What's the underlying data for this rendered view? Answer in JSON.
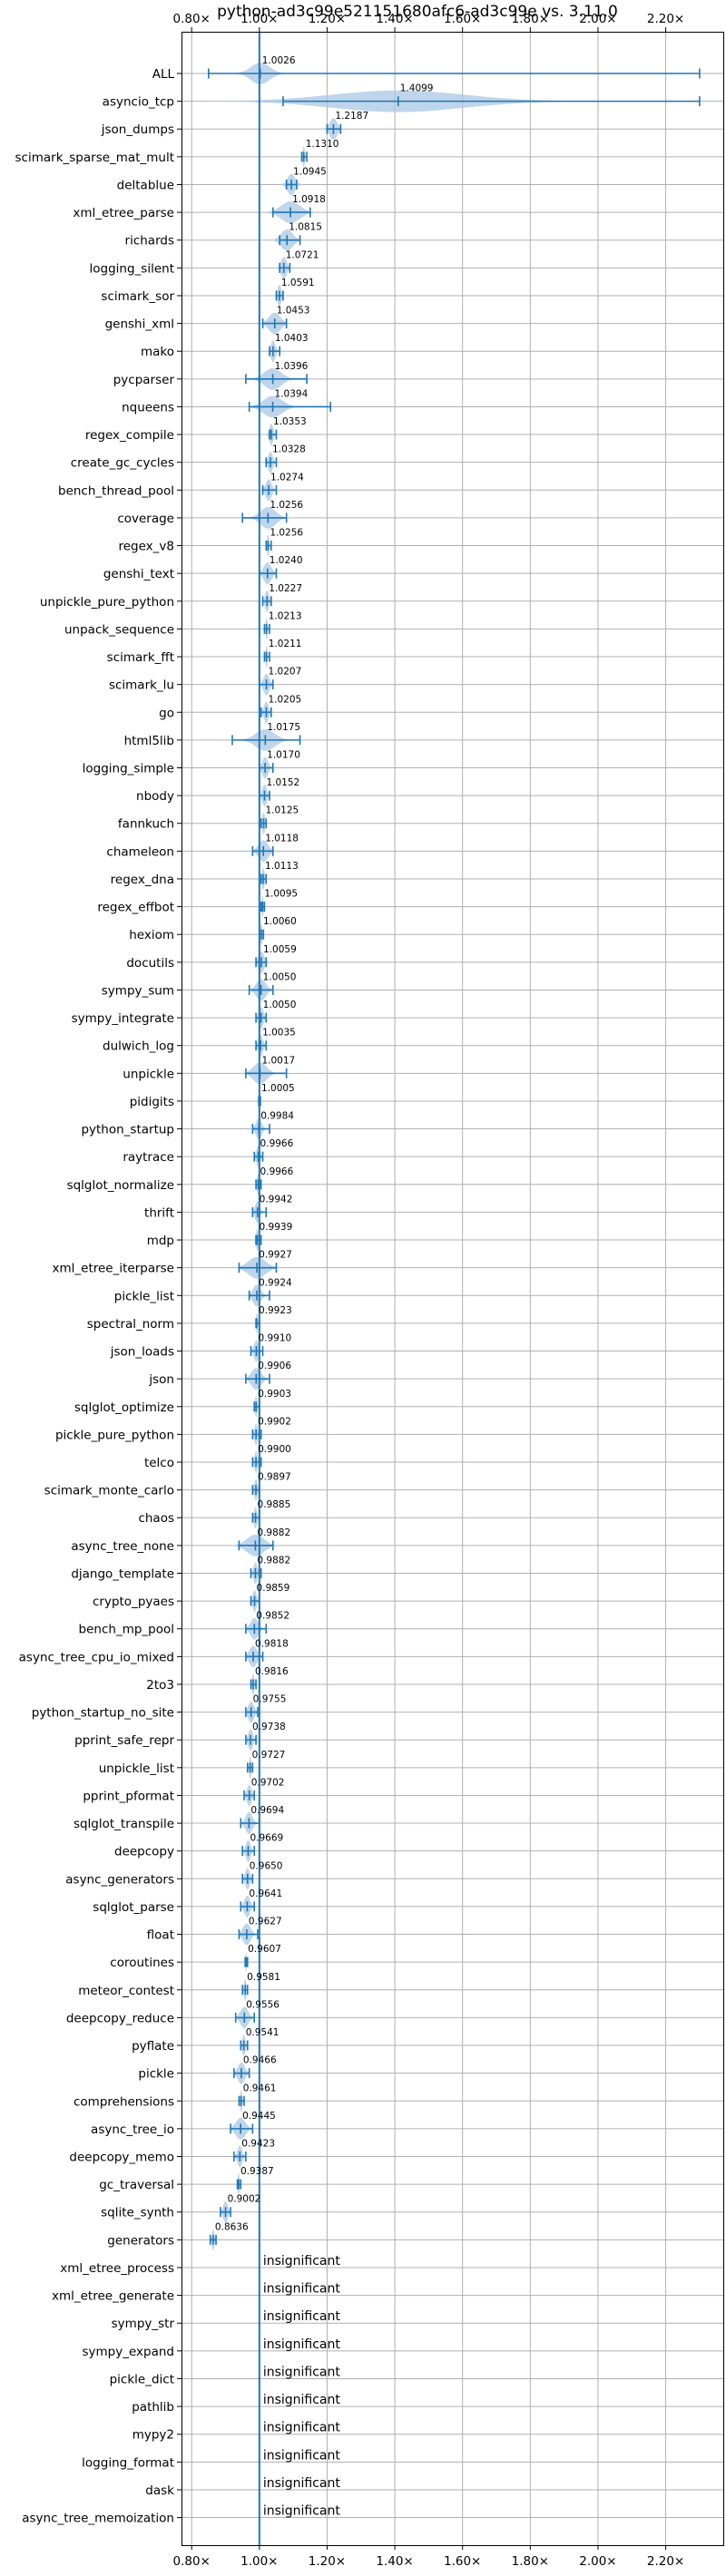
{
  "chart_data": {
    "type": "violin",
    "title": "python-ad3c99e521151680afc6-ad3c99e vs. 3.11.0",
    "xlim": [
      0.77,
      2.37
    ],
    "xticks": [
      "0.80×",
      "1.00×",
      "1.20×",
      "1.40×",
      "1.60×",
      "1.80×",
      "2.00×",
      "2.20×"
    ],
    "xtick_values": [
      0.8,
      1.0,
      1.2,
      1.4,
      1.6,
      1.8,
      2.0,
      2.2
    ],
    "reference_line": 1.0,
    "grid": true,
    "color": "#1f77b4",
    "fill_color": "#a9c7e4",
    "insignificant_label": "insignificant",
    "benchmarks": [
      {
        "name": "ALL",
        "label": "1.0026",
        "value": 1.0026,
        "min": 0.85,
        "max": 2.3,
        "spread": 0.05
      },
      {
        "name": "asyncio_tcp",
        "label": "1.4099",
        "value": 1.4099,
        "min": 1.07,
        "max": 2.3,
        "spread": 0.35
      },
      {
        "name": "json_dumps",
        "label": "1.2187",
        "value": 1.2187,
        "min": 1.2,
        "max": 1.24,
        "spread": 0.02
      },
      {
        "name": "scimark_sparse_mat_mult",
        "label": "1.1310",
        "value": 1.131,
        "min": 1.125,
        "max": 1.14,
        "spread": 0.005
      },
      {
        "name": "deltablue",
        "label": "1.0945",
        "value": 1.0945,
        "min": 1.08,
        "max": 1.11,
        "spread": 0.02
      },
      {
        "name": "xml_etree_parse",
        "label": "1.0918",
        "value": 1.0918,
        "min": 1.04,
        "max": 1.15,
        "spread": 0.05
      },
      {
        "name": "richards",
        "label": "1.0815",
        "value": 1.0815,
        "min": 1.06,
        "max": 1.12,
        "spread": 0.03
      },
      {
        "name": "logging_silent",
        "label": "1.0721",
        "value": 1.0721,
        "min": 1.06,
        "max": 1.09,
        "spread": 0.015
      },
      {
        "name": "scimark_sor",
        "label": "1.0591",
        "value": 1.0591,
        "min": 1.05,
        "max": 1.07,
        "spread": 0.01
      },
      {
        "name": "genshi_xml",
        "label": "1.0453",
        "value": 1.0453,
        "min": 1.01,
        "max": 1.08,
        "spread": 0.03
      },
      {
        "name": "mako",
        "label": "1.0403",
        "value": 1.0403,
        "min": 1.03,
        "max": 1.06,
        "spread": 0.012
      },
      {
        "name": "pycparser",
        "label": "1.0396",
        "value": 1.0396,
        "min": 0.96,
        "max": 1.14,
        "spread": 0.045
      },
      {
        "name": "nqueens",
        "label": "1.0394",
        "value": 1.0394,
        "min": 0.97,
        "max": 1.21,
        "spread": 0.05
      },
      {
        "name": "regex_compile",
        "label": "1.0353",
        "value": 1.0353,
        "min": 1.03,
        "max": 1.05,
        "spread": 0.01
      },
      {
        "name": "create_gc_cycles",
        "label": "1.0328",
        "value": 1.0328,
        "min": 1.02,
        "max": 1.05,
        "spread": 0.012
      },
      {
        "name": "bench_thread_pool",
        "label": "1.0274",
        "value": 1.0274,
        "min": 1.01,
        "max": 1.05,
        "spread": 0.015
      },
      {
        "name": "coverage",
        "label": "1.0256",
        "value": 1.0256,
        "min": 0.95,
        "max": 1.08,
        "spread": 0.04
      },
      {
        "name": "regex_v8",
        "label": "1.0256",
        "value": 1.0256,
        "min": 1.02,
        "max": 1.035,
        "spread": 0.006
      },
      {
        "name": "genshi_text",
        "label": "1.0240",
        "value": 1.024,
        "min": 1.0,
        "max": 1.05,
        "spread": 0.02
      },
      {
        "name": "unpickle_pure_python",
        "label": "1.0227",
        "value": 1.0227,
        "min": 1.01,
        "max": 1.035,
        "spread": 0.01
      },
      {
        "name": "unpack_sequence",
        "label": "1.0213",
        "value": 1.0213,
        "min": 1.015,
        "max": 1.03,
        "spread": 0.005
      },
      {
        "name": "scimark_fft",
        "label": "1.0211",
        "value": 1.0211,
        "min": 1.015,
        "max": 1.03,
        "spread": 0.005
      },
      {
        "name": "scimark_lu",
        "label": "1.0207",
        "value": 1.0207,
        "min": 1.0,
        "max": 1.04,
        "spread": 0.015
      },
      {
        "name": "go",
        "label": "1.0205",
        "value": 1.0205,
        "min": 1.005,
        "max": 1.035,
        "spread": 0.012
      },
      {
        "name": "html5lib",
        "label": "1.0175",
        "value": 1.0175,
        "min": 0.92,
        "max": 1.12,
        "spread": 0.05
      },
      {
        "name": "logging_simple",
        "label": "1.0170",
        "value": 1.017,
        "min": 1.0,
        "max": 1.04,
        "spread": 0.015
      },
      {
        "name": "nbody",
        "label": "1.0152",
        "value": 1.0152,
        "min": 1.0,
        "max": 1.03,
        "spread": 0.012
      },
      {
        "name": "fannkuch",
        "label": "1.0125",
        "value": 1.0125,
        "min": 1.005,
        "max": 1.02,
        "spread": 0.008
      },
      {
        "name": "chameleon",
        "label": "1.0118",
        "value": 1.0118,
        "min": 0.98,
        "max": 1.04,
        "spread": 0.025
      },
      {
        "name": "regex_dna",
        "label": "1.0113",
        "value": 1.0113,
        "min": 1.005,
        "max": 1.02,
        "spread": 0.008
      },
      {
        "name": "regex_effbot",
        "label": "1.0095",
        "value": 1.0095,
        "min": 1.005,
        "max": 1.015,
        "spread": 0.005
      },
      {
        "name": "hexiom",
        "label": "1.0060",
        "value": 1.006,
        "min": 1.0,
        "max": 1.012,
        "spread": 0.006
      },
      {
        "name": "docutils",
        "label": "1.0059",
        "value": 1.0059,
        "min": 0.99,
        "max": 1.02,
        "spread": 0.015
      },
      {
        "name": "sympy_sum",
        "label": "1.0050",
        "value": 1.005,
        "min": 0.97,
        "max": 1.04,
        "spread": 0.025
      },
      {
        "name": "sympy_integrate",
        "label": "1.0050",
        "value": 1.005,
        "min": 0.99,
        "max": 1.02,
        "spread": 0.012
      },
      {
        "name": "dulwich_log",
        "label": "1.0035",
        "value": 1.0035,
        "min": 0.99,
        "max": 1.02,
        "spread": 0.012
      },
      {
        "name": "unpickle",
        "label": "1.0017",
        "value": 1.0017,
        "min": 0.96,
        "max": 1.08,
        "spread": 0.035
      },
      {
        "name": "pidigits",
        "label": "1.0005",
        "value": 1.0005,
        "min": 0.998,
        "max": 1.003,
        "spread": 0.003
      },
      {
        "name": "python_startup",
        "label": "0.9984",
        "value": 0.9984,
        "min": 0.98,
        "max": 1.03,
        "spread": 0.015
      },
      {
        "name": "raytrace",
        "label": "0.9966",
        "value": 0.9966,
        "min": 0.985,
        "max": 1.01,
        "spread": 0.01
      },
      {
        "name": "sqlglot_normalize",
        "label": "0.9966",
        "value": 0.9966,
        "min": 0.99,
        "max": 1.005,
        "spread": 0.007
      },
      {
        "name": "thrift",
        "label": "0.9942",
        "value": 0.9942,
        "min": 0.98,
        "max": 1.02,
        "spread": 0.012
      },
      {
        "name": "mdp",
        "label": "0.9939",
        "value": 0.9939,
        "min": 0.99,
        "max": 1.005,
        "spread": 0.007
      },
      {
        "name": "xml_etree_iterparse",
        "label": "0.9927",
        "value": 0.9927,
        "min": 0.94,
        "max": 1.05,
        "spread": 0.045
      },
      {
        "name": "pickle_list",
        "label": "0.9924",
        "value": 0.9924,
        "min": 0.97,
        "max": 1.03,
        "spread": 0.02
      },
      {
        "name": "spectral_norm",
        "label": "0.9923",
        "value": 0.9923,
        "min": 0.99,
        "max": 1.0,
        "spread": 0.004
      },
      {
        "name": "json_loads",
        "label": "0.9910",
        "value": 0.991,
        "min": 0.975,
        "max": 1.01,
        "spread": 0.012
      },
      {
        "name": "json",
        "label": "0.9906",
        "value": 0.9906,
        "min": 0.96,
        "max": 1.03,
        "spread": 0.025
      },
      {
        "name": "sqlglot_optimize",
        "label": "0.9903",
        "value": 0.9903,
        "min": 0.985,
        "max": 1.0,
        "spread": 0.006
      },
      {
        "name": "pickle_pure_python",
        "label": "0.9902",
        "value": 0.9902,
        "min": 0.98,
        "max": 1.005,
        "spread": 0.008
      },
      {
        "name": "telco",
        "label": "0.9900",
        "value": 0.99,
        "min": 0.98,
        "max": 1.005,
        "spread": 0.008
      },
      {
        "name": "scimark_monte_carlo",
        "label": "0.9897",
        "value": 0.9897,
        "min": 0.98,
        "max": 1.0,
        "spread": 0.008
      },
      {
        "name": "chaos",
        "label": "0.9885",
        "value": 0.9885,
        "min": 0.98,
        "max": 1.0,
        "spread": 0.008
      },
      {
        "name": "async_tree_none",
        "label": "0.9882",
        "value": 0.9882,
        "min": 0.94,
        "max": 1.04,
        "spread": 0.045
      },
      {
        "name": "django_template",
        "label": "0.9882",
        "value": 0.9882,
        "min": 0.975,
        "max": 1.005,
        "spread": 0.01
      },
      {
        "name": "crypto_pyaes",
        "label": "0.9859",
        "value": 0.9859,
        "min": 0.975,
        "max": 1.0,
        "spread": 0.01
      },
      {
        "name": "bench_mp_pool",
        "label": "0.9852",
        "value": 0.9852,
        "min": 0.96,
        "max": 1.02,
        "spread": 0.02
      },
      {
        "name": "async_tree_cpu_io_mixed",
        "label": "0.9818",
        "value": 0.9818,
        "min": 0.96,
        "max": 1.01,
        "spread": 0.02
      },
      {
        "name": "2to3",
        "label": "0.9816",
        "value": 0.9816,
        "min": 0.975,
        "max": 0.99,
        "spread": 0.006
      },
      {
        "name": "python_startup_no_site",
        "label": "0.9755",
        "value": 0.9755,
        "min": 0.96,
        "max": 0.995,
        "spread": 0.015
      },
      {
        "name": "pprint_safe_repr",
        "label": "0.9738",
        "value": 0.9738,
        "min": 0.96,
        "max": 0.99,
        "spread": 0.012
      },
      {
        "name": "unpickle_list",
        "label": "0.9727",
        "value": 0.9727,
        "min": 0.965,
        "max": 0.98,
        "spread": 0.006
      },
      {
        "name": "pprint_pformat",
        "label": "0.9702",
        "value": 0.9702,
        "min": 0.955,
        "max": 0.985,
        "spread": 0.012
      },
      {
        "name": "sqlglot_transpile",
        "label": "0.9694",
        "value": 0.9694,
        "min": 0.945,
        "max": 1.0,
        "spread": 0.018
      },
      {
        "name": "deepcopy",
        "label": "0.9669",
        "value": 0.9669,
        "min": 0.95,
        "max": 0.985,
        "spread": 0.012
      },
      {
        "name": "async_generators",
        "label": "0.9650",
        "value": 0.965,
        "min": 0.95,
        "max": 0.98,
        "spread": 0.012
      },
      {
        "name": "sqlglot_parse",
        "label": "0.9641",
        "value": 0.9641,
        "min": 0.945,
        "max": 0.985,
        "spread": 0.015
      },
      {
        "name": "float",
        "label": "0.9627",
        "value": 0.9627,
        "min": 0.94,
        "max": 0.995,
        "spread": 0.02
      },
      {
        "name": "coroutines",
        "label": "0.9607",
        "value": 0.9607,
        "min": 0.958,
        "max": 0.965,
        "spread": 0.003
      },
      {
        "name": "meteor_contest",
        "label": "0.9581",
        "value": 0.9581,
        "min": 0.95,
        "max": 0.965,
        "spread": 0.006
      },
      {
        "name": "deepcopy_reduce",
        "label": "0.9556",
        "value": 0.9556,
        "min": 0.93,
        "max": 0.985,
        "spread": 0.02
      },
      {
        "name": "pyflate",
        "label": "0.9541",
        "value": 0.9541,
        "min": 0.945,
        "max": 0.965,
        "spread": 0.008
      },
      {
        "name": "pickle",
        "label": "0.9466",
        "value": 0.9466,
        "min": 0.925,
        "max": 0.97,
        "spread": 0.018
      },
      {
        "name": "comprehensions",
        "label": "0.9461",
        "value": 0.9461,
        "min": 0.94,
        "max": 0.955,
        "spread": 0.006
      },
      {
        "name": "async_tree_io",
        "label": "0.9445",
        "value": 0.9445,
        "min": 0.915,
        "max": 0.98,
        "spread": 0.025
      },
      {
        "name": "deepcopy_memo",
        "label": "0.9423",
        "value": 0.9423,
        "min": 0.925,
        "max": 0.96,
        "spread": 0.012
      },
      {
        "name": "gc_traversal",
        "label": "0.9387",
        "value": 0.9387,
        "min": 0.935,
        "max": 0.945,
        "spread": 0.005
      },
      {
        "name": "sqlite_synth",
        "label": "0.9002",
        "value": 0.9002,
        "min": 0.885,
        "max": 0.915,
        "spread": 0.012
      },
      {
        "name": "generators",
        "label": "0.8636",
        "value": 0.8636,
        "min": 0.855,
        "max": 0.872,
        "spread": 0.006
      },
      {
        "name": "xml_etree_process",
        "label": "insignificant",
        "value": null
      },
      {
        "name": "xml_etree_generate",
        "label": "insignificant",
        "value": null
      },
      {
        "name": "sympy_str",
        "label": "insignificant",
        "value": null
      },
      {
        "name": "sympy_expand",
        "label": "insignificant",
        "value": null
      },
      {
        "name": "pickle_dict",
        "label": "insignificant",
        "value": null
      },
      {
        "name": "pathlib",
        "label": "insignificant",
        "value": null
      },
      {
        "name": "mypy2",
        "label": "insignificant",
        "value": null
      },
      {
        "name": "logging_format",
        "label": "insignificant",
        "value": null
      },
      {
        "name": "dask",
        "label": "insignificant",
        "value": null
      },
      {
        "name": "async_tree_memoization",
        "label": "insignificant",
        "value": null
      }
    ]
  }
}
